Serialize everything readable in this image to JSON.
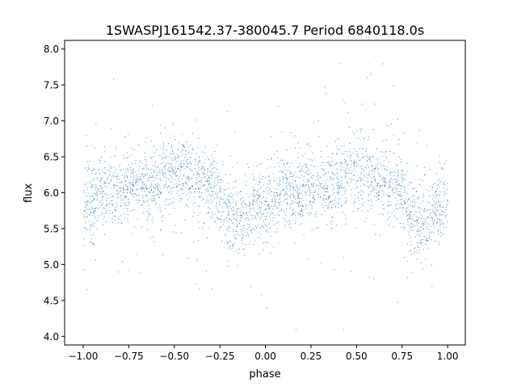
{
  "chart_data": {
    "type": "scatter",
    "title": "1SWASPJ161542.37-380045.7 Period 6840118.0s",
    "xlabel": "phase",
    "ylabel": "flux",
    "xlim": [
      -1.102,
      1.097
    ],
    "ylim": [
      3.88,
      8.12
    ],
    "grid": false,
    "legend": "none",
    "x_ticks": [
      -1.0,
      -0.75,
      -0.5,
      -0.25,
      0.0,
      0.25,
      0.5,
      0.75,
      1.0
    ],
    "x_tick_labels": [
      "−1.00",
      "−0.75",
      "−0.50",
      "−0.25",
      "0.00",
      "0.25",
      "0.50",
      "0.75",
      "1.00"
    ],
    "y_ticks": [
      4.0,
      4.5,
      5.0,
      5.5,
      6.0,
      6.5,
      7.0,
      7.5,
      8.0
    ],
    "y_tick_labels": [
      "4.0",
      "4.5",
      "5.0",
      "5.5",
      "6.0",
      "6.5",
      "7.0",
      "7.5",
      "8.0"
    ],
    "point_color": "#1f77b4",
    "phase_range": [
      -1.0,
      1.0
    ],
    "binned_mean_flux": {
      "phase": [
        0.0,
        0.05,
        0.1,
        0.15,
        0.2,
        0.25,
        0.3,
        0.35,
        0.4,
        0.45,
        0.5,
        0.55,
        0.6,
        0.65,
        0.7,
        0.75,
        0.8,
        0.85,
        0.9,
        0.95
      ],
      "flux": [
        5.85,
        5.85,
        6.0,
        6.05,
        6.0,
        6.1,
        6.1,
        6.1,
        6.15,
        6.25,
        6.3,
        6.3,
        6.2,
        6.15,
        6.1,
        6.0,
        5.7,
        5.55,
        5.65,
        5.85
      ]
    },
    "flux_scatter_std": 0.25,
    "flux_min": 4.1,
    "flux_max": 7.8,
    "n_points_rendered": 3200
  }
}
